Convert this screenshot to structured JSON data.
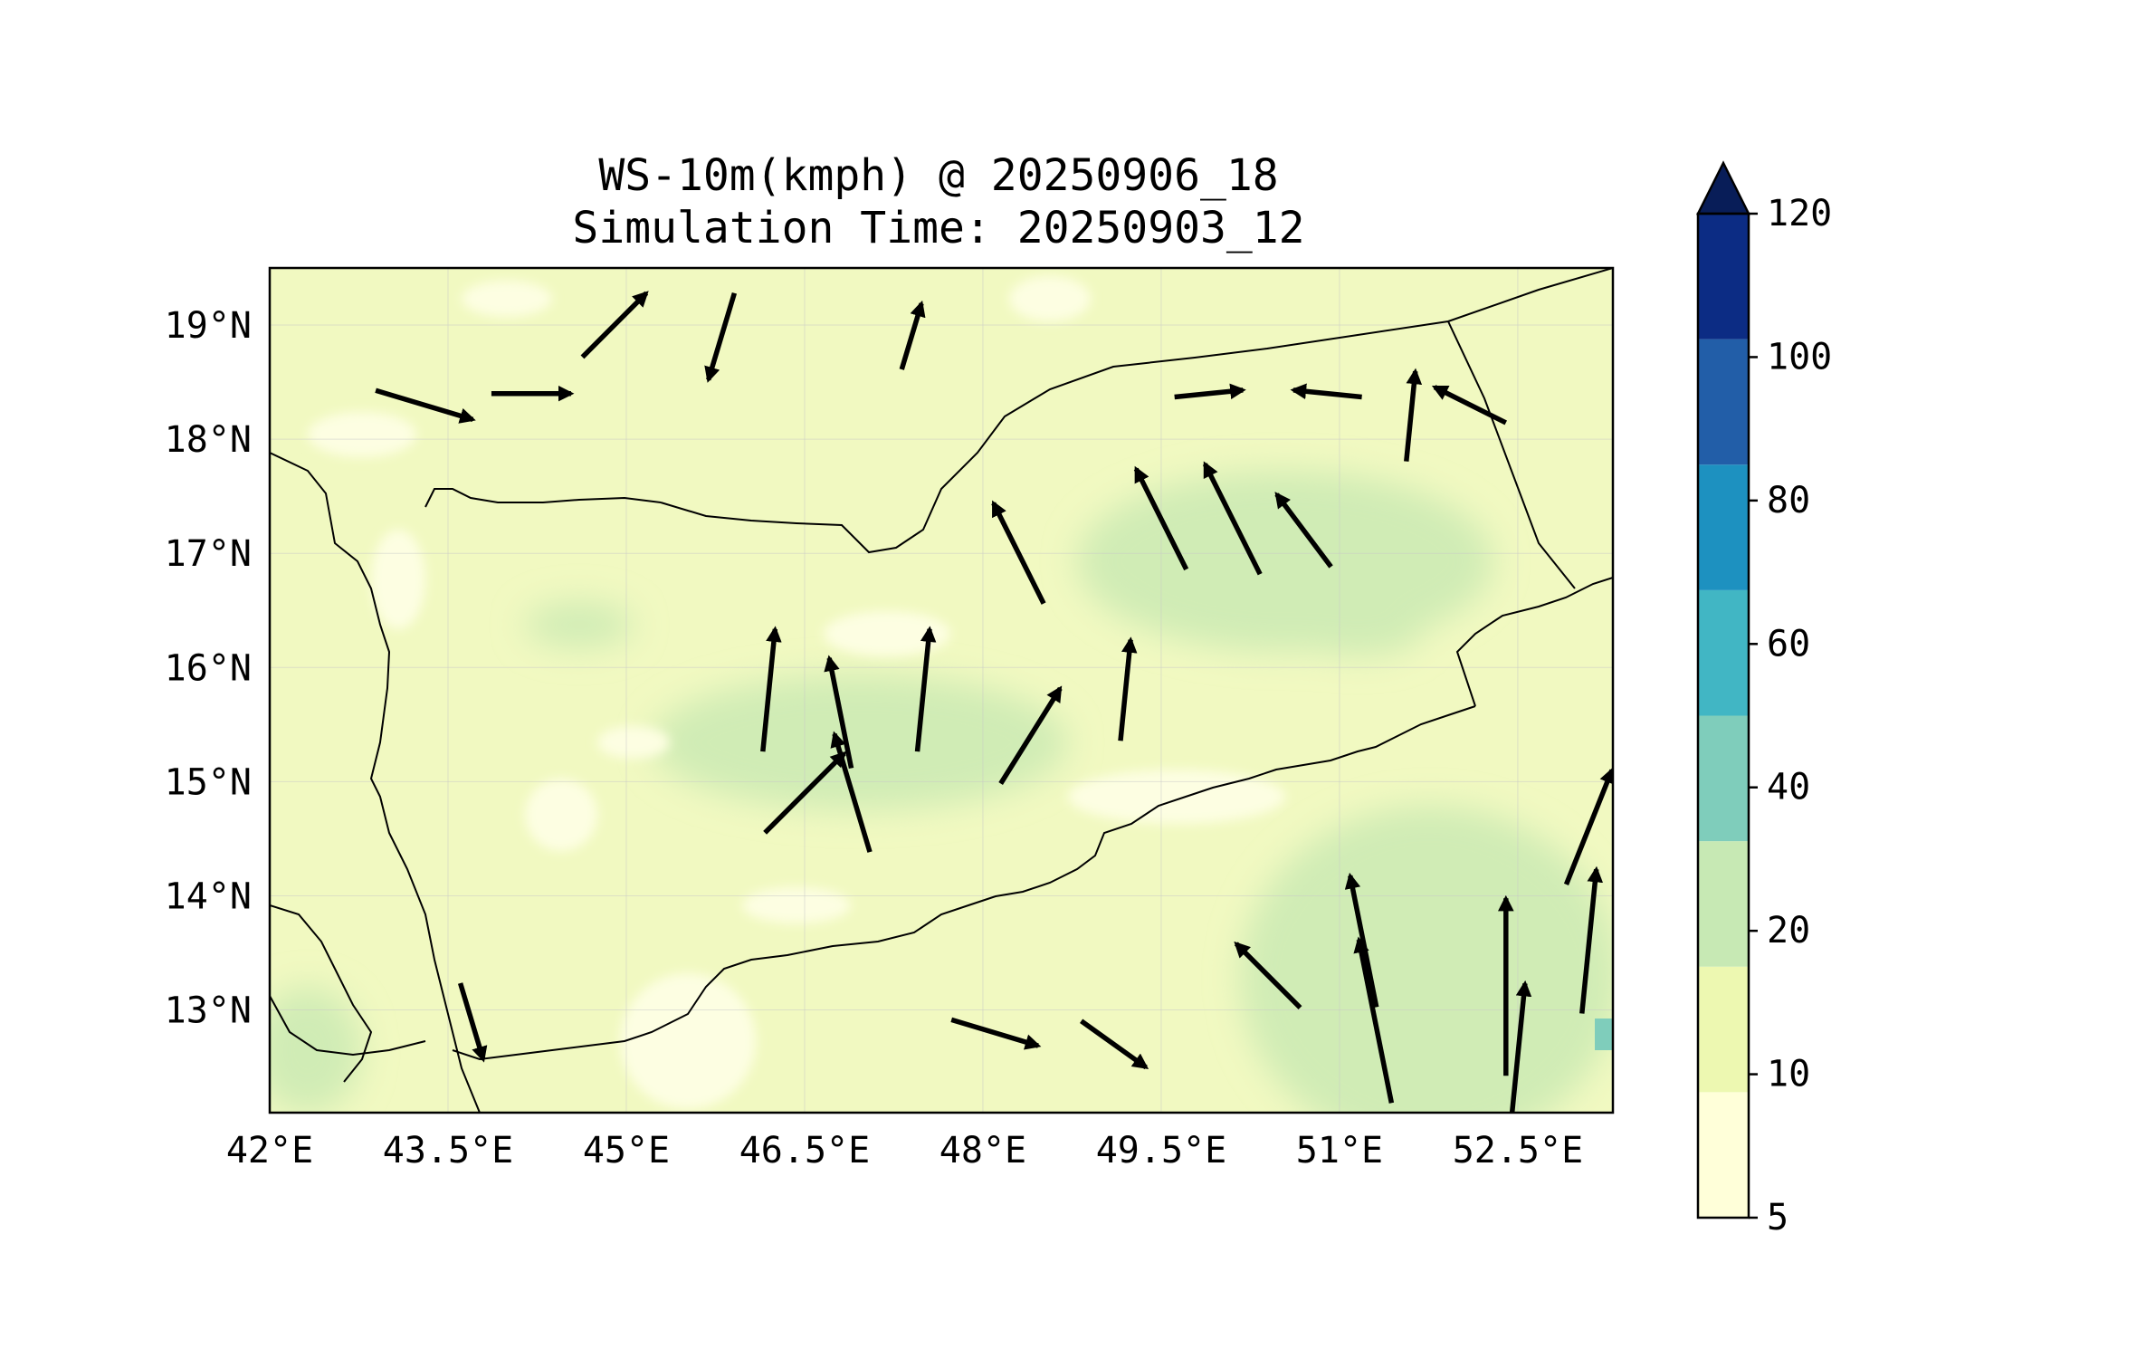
{
  "map": {
    "title_line1": "WS-10m(kmph) @ 20250906_18",
    "title_line2": "Simulation Time: 20250903_12",
    "variable": "10 m wind speed",
    "units": "kmph",
    "lon_range": [
      42.0,
      53.3
    ],
    "lat_range": [
      12.1,
      19.5
    ],
    "lon_ticks": [
      "42°E",
      "43.5°E",
      "45°E",
      "46.5°E",
      "48°E",
      "49.5°E",
      "51°E",
      "52.5°E"
    ],
    "lat_ticks": [
      "19°N",
      "18°N",
      "17°N",
      "16°N",
      "15°N",
      "14°N",
      "13°N"
    ],
    "grid": true,
    "background_color": "#f1f9c1"
  },
  "colorbar": {
    "levels": [
      "5",
      "10",
      "20",
      "40",
      "60",
      "80",
      "100",
      "120"
    ],
    "extend": "max",
    "colors": [
      "#ffffd9",
      "#edf8b1",
      "#c7e9b4",
      "#7fcdbb",
      "#41b6c4",
      "#1d91c0",
      "#225ea8",
      "#0c2c84"
    ],
    "extend_color": "#081d58"
  },
  "chart_data": {
    "type": "heatmap",
    "title": "WS-10m(kmph) @ 20250906_18\nSimulation Time: 20250903_12",
    "x_ticks": [
      42,
      43.5,
      45,
      46.5,
      48,
      49.5,
      51,
      52.5
    ],
    "y_ticks": [
      19,
      18,
      17,
      16,
      15,
      14,
      13
    ],
    "xlim": [
      42.0,
      53.3
    ],
    "ylim": [
      12.1,
      19.5
    ],
    "levels": [
      5,
      10,
      20,
      40,
      60,
      80,
      100,
      120
    ],
    "dominant_range_kmph": [
      10,
      20
    ],
    "regions_20_40_kmph": [
      {
        "lon": [
          48.9,
          51.8
        ],
        "lat": [
          16.3,
          17.8
        ]
      },
      {
        "lon": [
          45.4,
          48.3
        ],
        "lat": [
          14.9,
          16.0
        ]
      },
      {
        "lon": [
          51.0,
          53.3
        ],
        "lat": [
          12.1,
          14.6
        ]
      }
    ],
    "regions_5_10_kmph": [
      {
        "lon": [
          45.0,
          46.0
        ],
        "lat": [
          12.1,
          13.4
        ]
      },
      {
        "lon": [
          49.0,
          50.6
        ],
        "lat": [
          14.4,
          15.2
        ]
      }
    ],
    "wind_vectors": [
      {
        "lon": 43.3,
        "lat": 18.3,
        "u": 1.0,
        "v": -0.3,
        "mag": 14
      },
      {
        "lon": 44.2,
        "lat": 18.4,
        "u": 0.9,
        "v": 0.0,
        "mag": 10
      },
      {
        "lon": 44.9,
        "lat": 19.0,
        "u": 0.7,
        "v": 0.7,
        "mag": 12
      },
      {
        "lon": 45.8,
        "lat": 18.9,
        "u": -0.3,
        "v": -1.0,
        "mag": 12
      },
      {
        "lon": 47.4,
        "lat": 18.9,
        "u": 0.3,
        "v": 1.0,
        "mag": 8
      },
      {
        "lon": 49.9,
        "lat": 18.4,
        "u": 1.0,
        "v": 0.1,
        "mag": 8
      },
      {
        "lon": 50.9,
        "lat": 18.4,
        "u": -1.0,
        "v": 0.1,
        "mag": 8
      },
      {
        "lon": 51.6,
        "lat": 18.2,
        "u": 0.1,
        "v": 1.0,
        "mag": 12
      },
      {
        "lon": 52.1,
        "lat": 18.3,
        "u": -0.8,
        "v": 0.4,
        "mag": 10
      },
      {
        "lon": 49.5,
        "lat": 17.3,
        "u": -0.5,
        "v": 1.0,
        "mag": 16
      },
      {
        "lon": 50.1,
        "lat": 17.3,
        "u": -0.5,
        "v": 1.0,
        "mag": 18
      },
      {
        "lon": 50.7,
        "lat": 17.2,
        "u": -0.6,
        "v": 0.8,
        "mag": 12
      },
      {
        "lon": 48.3,
        "lat": 17.0,
        "u": -0.5,
        "v": 1.0,
        "mag": 16
      },
      {
        "lon": 46.8,
        "lat": 15.6,
        "u": -0.2,
        "v": 1.0,
        "mag": 16
      },
      {
        "lon": 46.2,
        "lat": 15.8,
        "u": 0.1,
        "v": 1.0,
        "mag": 18
      },
      {
        "lon": 47.5,
        "lat": 15.8,
        "u": 0.1,
        "v": 1.0,
        "mag": 18
      },
      {
        "lon": 48.4,
        "lat": 15.4,
        "u": 0.5,
        "v": 0.8,
        "mag": 16
      },
      {
        "lon": 46.5,
        "lat": 14.9,
        "u": 0.7,
        "v": 0.7,
        "mag": 16
      },
      {
        "lon": 46.9,
        "lat": 14.9,
        "u": -0.3,
        "v": 1.0,
        "mag": 18
      },
      {
        "lon": 49.2,
        "lat": 15.8,
        "u": 0.1,
        "v": 1.0,
        "mag": 14
      },
      {
        "lon": 51.2,
        "lat": 13.6,
        "u": -0.2,
        "v": 1.0,
        "mag": 20
      },
      {
        "lon": 51.3,
        "lat": 12.9,
        "u": -0.2,
        "v": 1.0,
        "mag": 26
      },
      {
        "lon": 52.4,
        "lat": 13.2,
        "u": 0.0,
        "v": 1.0,
        "mag": 28
      },
      {
        "lon": 52.5,
        "lat": 12.6,
        "u": 0.1,
        "v": 1.0,
        "mag": 22
      },
      {
        "lon": 53.1,
        "lat": 13.6,
        "u": 0.1,
        "v": 1.0,
        "mag": 22
      },
      {
        "lon": 53.1,
        "lat": 14.6,
        "u": 0.4,
        "v": 1.0,
        "mag": 18
      },
      {
        "lon": 50.4,
        "lat": 13.3,
        "u": -0.7,
        "v": 0.7,
        "mag": 12
      },
      {
        "lon": 48.1,
        "lat": 12.8,
        "u": 1.0,
        "v": -0.3,
        "mag": 12
      },
      {
        "lon": 49.1,
        "lat": 12.7,
        "u": 0.7,
        "v": -0.5,
        "mag": 10
      },
      {
        "lon": 43.7,
        "lat": 12.9,
        "u": 0.3,
        "v": -1.0,
        "mag": 10
      }
    ]
  }
}
